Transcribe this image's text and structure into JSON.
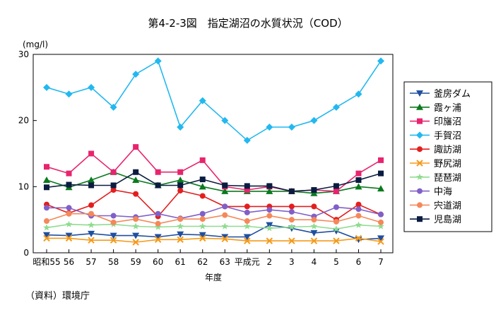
{
  "chart_data": {
    "type": "line",
    "title": "第4-2-3図　指定湖沼の水質状況（COD）",
    "unit_label": "(mg/l)",
    "xlabel": "年度",
    "source": "（資料）環境庁",
    "ylim": [
      0,
      30
    ],
    "yticks": [
      0,
      10,
      20,
      30
    ],
    "categories": [
      "昭和55",
      "56",
      "57",
      "58",
      "59",
      "60",
      "61",
      "62",
      "63",
      "平成元",
      "2",
      "3",
      "4",
      "5",
      "6",
      "7"
    ],
    "legend_position": "right",
    "series": [
      {
        "name": "釜房ダム",
        "color": "#1f4fa0",
        "marker": "triangle-down",
        "values": [
          2.7,
          2.6,
          2.9,
          2.6,
          2.6,
          2.4,
          2.8,
          2.7,
          2.4,
          2.4,
          4.2,
          3.7,
          3.0,
          3.3,
          2.0,
          2.2
        ]
      },
      {
        "name": "霞ヶ浦",
        "color": "#0a7a1e",
        "marker": "triangle-up",
        "values": [
          11.0,
          9.9,
          11.0,
          12.2,
          11.0,
          10.2,
          11.0,
          10.0,
          9.3,
          9.3,
          9.3,
          9.3,
          9.0,
          9.3,
          10.0,
          9.7
        ]
      },
      {
        "name": "印旛沼",
        "color": "#e8246e",
        "marker": "square",
        "values": [
          13.0,
          12.0,
          15.0,
          12.2,
          16.0,
          12.2,
          12.2,
          14.0,
          10.0,
          9.5,
          10.0,
          9.3,
          9.5,
          9.3,
          12.0,
          14.0
        ]
      },
      {
        "name": "手賀沼",
        "color": "#22b8f0",
        "marker": "diamond",
        "values": [
          25.0,
          24.0,
          25.0,
          22.0,
          27.0,
          29.0,
          19.0,
          23.0,
          20.0,
          17.0,
          19.0,
          19.0,
          20.0,
          22.0,
          24.0,
          29.0
        ]
      },
      {
        "name": "諏訪湖",
        "color": "#e41e1e",
        "marker": "circle",
        "values": [
          7.3,
          6.0,
          7.2,
          9.5,
          8.9,
          5.5,
          9.4,
          8.6,
          7.0,
          7.0,
          7.0,
          7.0,
          7.0,
          5.0,
          7.3,
          5.8
        ]
      },
      {
        "name": "野尻湖",
        "color": "#f59a1b",
        "marker": "x",
        "values": [
          2.2,
          2.2,
          1.9,
          1.9,
          1.6,
          2.0,
          2.0,
          2.2,
          2.1,
          1.8,
          1.8,
          1.8,
          1.8,
          1.8,
          2.2,
          1.7
        ]
      },
      {
        "name": "琵琶湖",
        "color": "#8fdc8f",
        "marker": "star",
        "values": [
          3.8,
          4.3,
          4.2,
          4.3,
          4.0,
          3.9,
          4.0,
          4.0,
          4.0,
          4.0,
          3.7,
          3.9,
          4.0,
          3.6,
          4.2,
          4.0
        ]
      },
      {
        "name": "中海",
        "color": "#8060c8",
        "marker": "circle",
        "values": [
          6.8,
          6.8,
          5.6,
          5.6,
          5.4,
          5.9,
          5.2,
          5.9,
          7.0,
          6.1,
          6.5,
          6.2,
          5.5,
          6.9,
          6.6,
          5.8
        ]
      },
      {
        "name": "宍道湖",
        "color": "#f5885a",
        "marker": "circle",
        "values": [
          4.8,
          5.9,
          5.9,
          4.6,
          5.1,
          4.4,
          5.1,
          5.1,
          5.7,
          4.8,
          5.6,
          5.0,
          5.0,
          4.7,
          5.6,
          4.6
        ]
      },
      {
        "name": "児島湖",
        "color": "#0b1c40",
        "marker": "square",
        "values": [
          9.9,
          10.3,
          10.2,
          10.2,
          12.2,
          10.2,
          10.2,
          11.1,
          10.2,
          10.1,
          10.1,
          9.3,
          9.5,
          10.1,
          11.0,
          12.0
        ]
      }
    ]
  }
}
